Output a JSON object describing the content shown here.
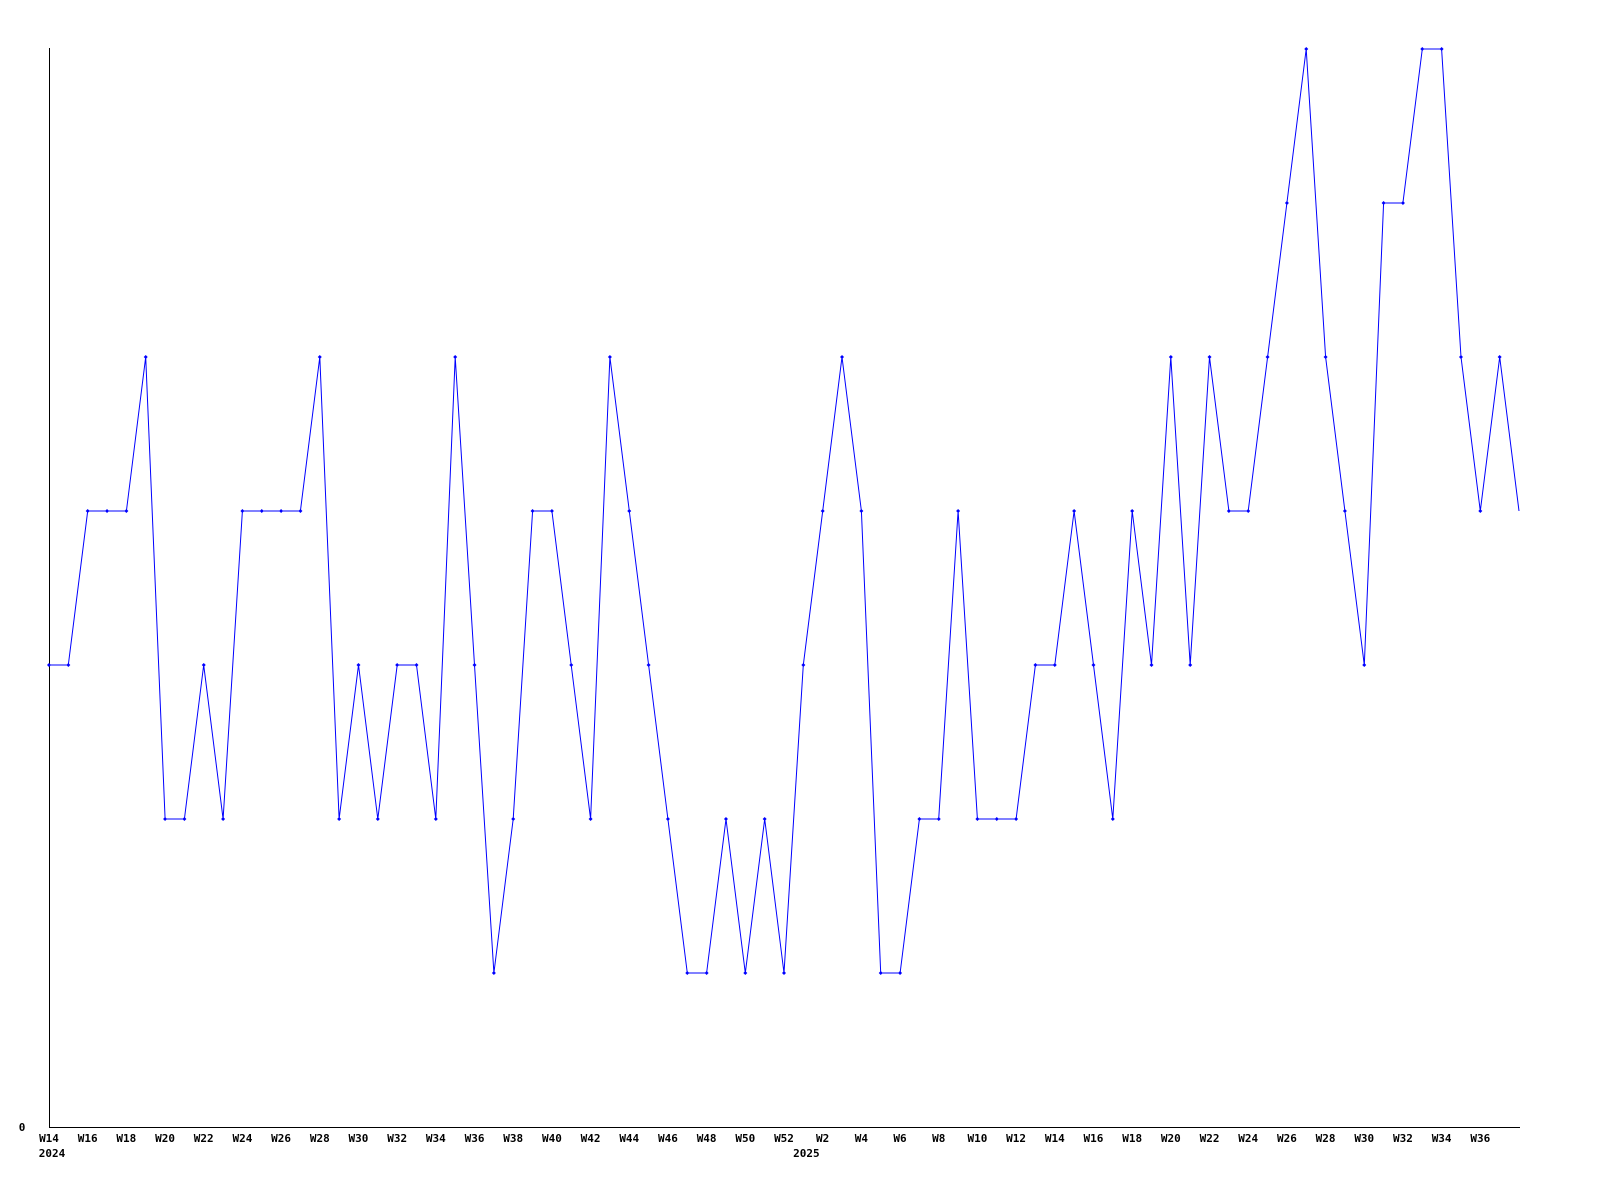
{
  "chart_data": {
    "type": "line",
    "title": "",
    "xlabel": "",
    "ylabel": "",
    "ylim": [
      0,
      7
    ],
    "y_tick_labels": [
      "0"
    ],
    "grid": false,
    "line_color": "#0000ff",
    "year_labels": [
      {
        "label": "2024",
        "at": "2024-W14"
      },
      {
        "label": "2025",
        "at": "2025-W1"
      }
    ],
    "x": [
      "2024-W14",
      "2024-W15",
      "2024-W16",
      "2024-W17",
      "2024-W18",
      "2024-W19",
      "2024-W20",
      "2024-W21",
      "2024-W22",
      "2024-W23",
      "2024-W24",
      "2024-W25",
      "2024-W26",
      "2024-W27",
      "2024-W28",
      "2024-W29",
      "2024-W30",
      "2024-W31",
      "2024-W32",
      "2024-W33",
      "2024-W34",
      "2024-W35",
      "2024-W36",
      "2024-W37",
      "2024-W38",
      "2024-W39",
      "2024-W40",
      "2024-W41",
      "2024-W42",
      "2024-W43",
      "2024-W44",
      "2024-W45",
      "2024-W46",
      "2024-W47",
      "2024-W48",
      "2024-W49",
      "2024-W50",
      "2024-W51",
      "2024-W52",
      "2025-W1",
      "2025-W2",
      "2025-W3",
      "2025-W4",
      "2025-W5",
      "2025-W6",
      "2025-W7",
      "2025-W8",
      "2025-W9",
      "2025-W10",
      "2025-W11",
      "2025-W12",
      "2025-W13",
      "2025-W14",
      "2025-W15",
      "2025-W16",
      "2025-W17",
      "2025-W18",
      "2025-W19",
      "2025-W20",
      "2025-W21",
      "2025-W22",
      "2025-W23",
      "2025-W24",
      "2025-W25",
      "2025-W26",
      "2025-W27",
      "2025-W28",
      "2025-W29",
      "2025-W30",
      "2025-W31",
      "2025-W32",
      "2025-W33",
      "2025-W34",
      "2025-W35",
      "2025-W36",
      "2025-W37",
      "2025-W38"
    ],
    "x_tick_labels": [
      "W14",
      "",
      "W16",
      "",
      "W18",
      "",
      "W20",
      "",
      "W22",
      "",
      "W24",
      "",
      "W26",
      "",
      "W28",
      "",
      "W30",
      "",
      "W32",
      "",
      "W34",
      "",
      "W36",
      "",
      "W38",
      "",
      "W40",
      "",
      "W42",
      "",
      "W44",
      "",
      "W46",
      "",
      "W48",
      "",
      "W50",
      "",
      "W52",
      "",
      "W2",
      "",
      "W4",
      "",
      "W6",
      "",
      "W8",
      "",
      "W10",
      "",
      "W12",
      "",
      "W14",
      "",
      "W16",
      "",
      "W18",
      "",
      "W20",
      "",
      "W22",
      "",
      "W24",
      "",
      "W26",
      "",
      "W28",
      "",
      "W30",
      "",
      "W32",
      "",
      "W34",
      "",
      "W36",
      "",
      ""
    ],
    "values": [
      3,
      3,
      4,
      4,
      4,
      5,
      2,
      2,
      3,
      2,
      4,
      4,
      4,
      4,
      5,
      2,
      3,
      2,
      3,
      3,
      2,
      5,
      3,
      1,
      2,
      4,
      4,
      3,
      2,
      5,
      4,
      3,
      2,
      1,
      1,
      2,
      1,
      2,
      1,
      3,
      4,
      5,
      4,
      1,
      1,
      2,
      2,
      4,
      2,
      2,
      2,
      3,
      3,
      4,
      3,
      2,
      4,
      3,
      5,
      3,
      5,
      4,
      4,
      5,
      6,
      7,
      5,
      4,
      3,
      6,
      6,
      7,
      7,
      5,
      4,
      5,
      4
    ]
  }
}
